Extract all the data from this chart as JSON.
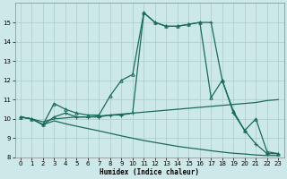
{
  "xlabel": "Humidex (Indice chaleur)",
  "background_color": "#cce8e8",
  "grid_color": "#aacccc",
  "line_color": "#1a6b5a",
  "xlim": [
    -0.5,
    23.5
  ],
  "ylim": [
    8,
    16
  ],
  "yticks": [
    8,
    9,
    10,
    11,
    12,
    13,
    14,
    15
  ],
  "xticks": [
    0,
    1,
    2,
    3,
    4,
    5,
    6,
    7,
    8,
    9,
    10,
    11,
    12,
    13,
    14,
    15,
    16,
    17,
    18,
    19,
    20,
    21,
    22,
    23
  ],
  "line1_x": [
    0,
    1,
    2,
    3,
    4,
    5,
    6,
    7,
    8,
    9,
    10,
    11,
    12,
    13,
    14,
    15,
    16,
    17,
    18,
    19,
    20,
    21,
    22,
    23
  ],
  "line1_y": [
    10.1,
    10.0,
    9.7,
    10.1,
    10.3,
    10.1,
    10.1,
    10.1,
    10.2,
    10.2,
    10.3,
    15.5,
    15.0,
    14.8,
    14.8,
    14.9,
    15.0,
    15.0,
    12.0,
    10.3,
    9.4,
    8.7,
    8.2,
    8.2
  ],
  "line2_x": [
    0,
    1,
    2,
    3,
    4,
    5,
    6,
    7,
    8,
    9,
    10,
    11,
    12,
    13,
    14,
    15,
    16,
    17,
    18,
    19,
    20,
    21,
    22,
    23
  ],
  "line2_y": [
    10.1,
    10.0,
    9.7,
    10.8,
    10.5,
    10.3,
    10.2,
    10.2,
    11.2,
    12.0,
    12.3,
    15.5,
    15.0,
    14.8,
    14.8,
    14.9,
    15.0,
    11.1,
    12.0,
    10.4,
    9.4,
    10.0,
    8.3,
    8.2
  ],
  "line3_x": [
    0,
    1,
    2,
    3,
    4,
    5,
    6,
    7,
    8,
    9,
    10,
    11,
    12,
    13,
    14,
    15,
    16,
    17,
    18,
    19,
    20,
    21,
    22,
    23
  ],
  "line3_y": [
    10.1,
    10.0,
    9.85,
    10.0,
    10.05,
    10.1,
    10.1,
    10.15,
    10.2,
    10.25,
    10.3,
    10.35,
    10.4,
    10.45,
    10.5,
    10.55,
    10.6,
    10.65,
    10.7,
    10.75,
    10.8,
    10.85,
    10.95,
    11.0
  ],
  "line4_x": [
    0,
    1,
    2,
    3,
    4,
    5,
    6,
    7,
    8,
    9,
    10,
    11,
    12,
    13,
    14,
    15,
    16,
    17,
    18,
    19,
    20,
    21,
    22,
    23
  ],
  "line4_y": [
    10.1,
    10.0,
    9.7,
    9.9,
    9.75,
    9.62,
    9.5,
    9.38,
    9.25,
    9.12,
    9.0,
    8.88,
    8.78,
    8.68,
    8.58,
    8.5,
    8.43,
    8.35,
    8.28,
    8.22,
    8.18,
    8.13,
    8.1,
    8.1
  ]
}
